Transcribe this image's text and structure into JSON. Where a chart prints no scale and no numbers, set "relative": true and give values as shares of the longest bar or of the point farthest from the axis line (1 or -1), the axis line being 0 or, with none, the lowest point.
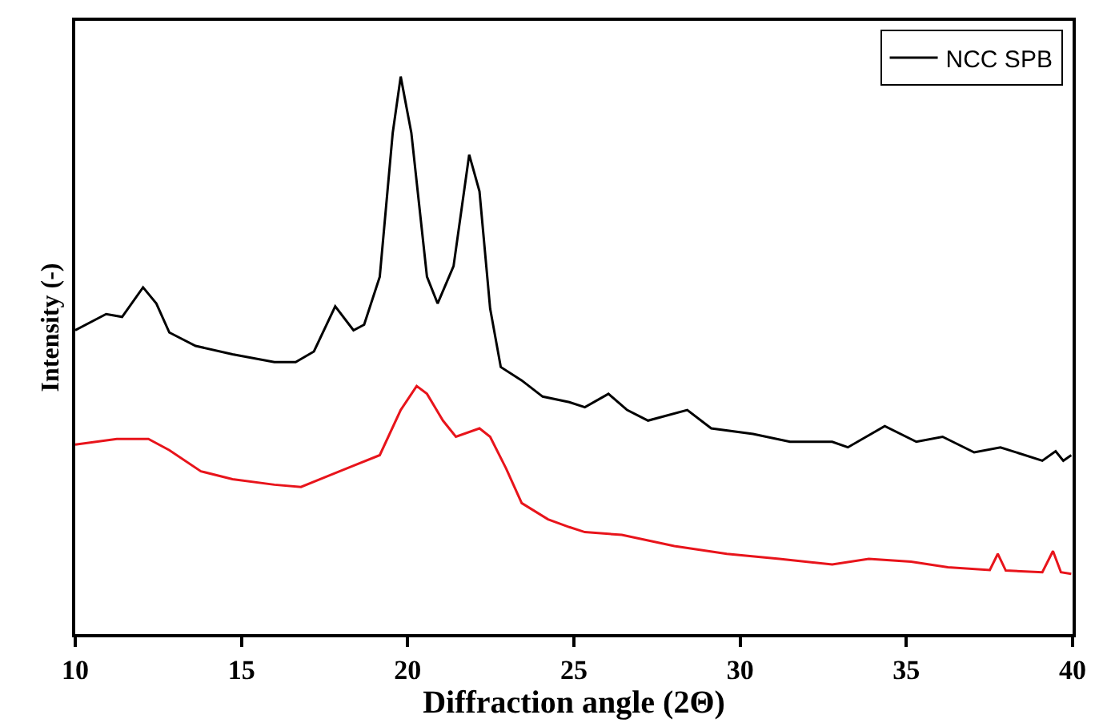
{
  "chart_data": {
    "type": "line",
    "xlabel": "Diffraction angle (2Θ)",
    "ylabel": "Intensity (-)",
    "relative": true,
    "xlim": [
      10,
      40
    ],
    "xticks": [
      10,
      15,
      20,
      25,
      30,
      35,
      40
    ],
    "legend": "top right",
    "marker": "none",
    "line_style": "solid",
    "tick_labels": "x",
    "series": [
      {
        "name": "NCC SPB",
        "color": "#000000",
        "x": [
          10.0,
          10.93,
          11.41,
          12.04,
          12.44,
          12.83,
          13.62,
          14.73,
          15.99,
          16.63,
          17.18,
          17.82,
          18.37,
          18.69,
          19.16,
          19.55,
          19.79,
          20.11,
          20.58,
          20.9,
          21.38,
          21.85,
          22.16,
          22.48,
          22.8,
          23.43,
          24.06,
          24.86,
          25.33,
          26.04,
          26.6,
          27.23,
          28.41,
          29.13,
          30.39,
          31.5,
          32.77,
          33.24,
          34.35,
          35.3,
          36.09,
          37.04,
          37.83,
          39.09,
          39.49,
          39.72,
          39.96
        ],
        "values": [
          0.545,
          0.574,
          0.569,
          0.622,
          0.593,
          0.541,
          0.517,
          0.502,
          0.488,
          0.488,
          0.507,
          0.588,
          0.545,
          0.555,
          0.641,
          0.899,
          1.0,
          0.899,
          0.641,
          0.593,
          0.66,
          0.86,
          0.794,
          0.584,
          0.479,
          0.455,
          0.426,
          0.416,
          0.407,
          0.431,
          0.402,
          0.383,
          0.402,
          0.369,
          0.359,
          0.345,
          0.345,
          0.335,
          0.373,
          0.345,
          0.354,
          0.326,
          0.335,
          0.311,
          0.328,
          0.311,
          0.321
        ]
      },
      {
        "color": "#e8141b",
        "x": [
          10.0,
          11.25,
          12.2,
          12.83,
          13.78,
          14.73,
          15.99,
          16.79,
          17.58,
          18.37,
          19.16,
          19.79,
          20.27,
          20.58,
          21.06,
          21.45,
          22.16,
          22.48,
          22.96,
          23.43,
          24.22,
          24.86,
          25.33,
          26.44,
          28.02,
          29.6,
          31.18,
          32.77,
          33.87,
          35.14,
          36.25,
          37.51,
          37.75,
          37.99,
          39.09,
          39.41,
          39.65,
          39.96
        ],
        "values": [
          0.34,
          0.35,
          0.35,
          0.33,
          0.292,
          0.278,
          0.268,
          0.264,
          0.283,
          0.302,
          0.321,
          0.402,
          0.445,
          0.431,
          0.383,
          0.354,
          0.369,
          0.354,
          0.297,
          0.235,
          0.206,
          0.192,
          0.183,
          0.178,
          0.158,
          0.144,
          0.135,
          0.125,
          0.135,
          0.13,
          0.12,
          0.115,
          0.144,
          0.114,
          0.111,
          0.149,
          0.111,
          0.108
        ]
      }
    ]
  }
}
